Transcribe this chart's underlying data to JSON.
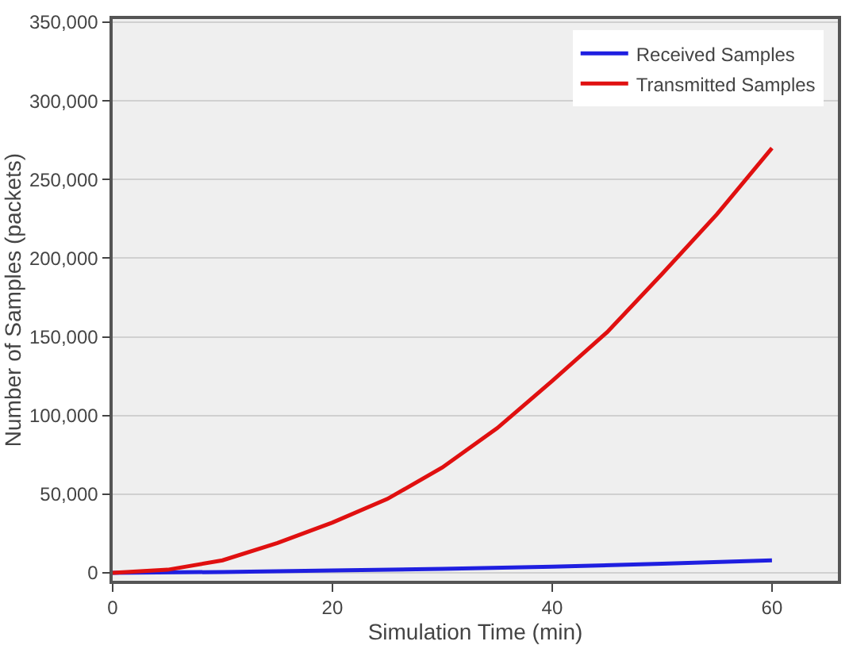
{
  "chart_data": {
    "type": "line",
    "xlabel": "Simulation Time (min)",
    "ylabel": "Number of Samples (packets)",
    "xlim": [
      0,
      66
    ],
    "xticks": [
      0,
      20,
      40,
      60
    ],
    "ylim": [
      -5000,
      352000
    ],
    "yticks": [
      {
        "value": 0,
        "label": "0"
      },
      {
        "value": 50000,
        "label": "50,000"
      },
      {
        "value": 100000,
        "label": "100,000"
      },
      {
        "value": 150000,
        "label": "150,000"
      },
      {
        "value": 200000,
        "label": "200,000"
      },
      {
        "value": 250000,
        "label": "250,000"
      },
      {
        "value": 300000,
        "label": "300,000"
      },
      {
        "value": 350000,
        "label": "350,000"
      }
    ],
    "grid": "y",
    "legend": "top right",
    "marker": "none",
    "line_style": "solid",
    "series": [
      {
        "name": "Received Samples",
        "color": "#1f1fe0",
        "x": [
          0,
          10,
          20,
          30,
          40,
          50,
          60
        ],
        "values": [
          0,
          600,
          1500,
          2600,
          4000,
          5800,
          8000
        ]
      },
      {
        "name": "Transmitted Samples",
        "color": "#e01010",
        "x": [
          0,
          5,
          10,
          15,
          20,
          25,
          30,
          35,
          40,
          45,
          50,
          55,
          60
        ],
        "values": [
          0,
          2000,
          8000,
          19000,
          32000,
          47000,
          67000,
          92000,
          122000,
          153000,
          190000,
          228000,
          270000
        ]
      }
    ]
  }
}
